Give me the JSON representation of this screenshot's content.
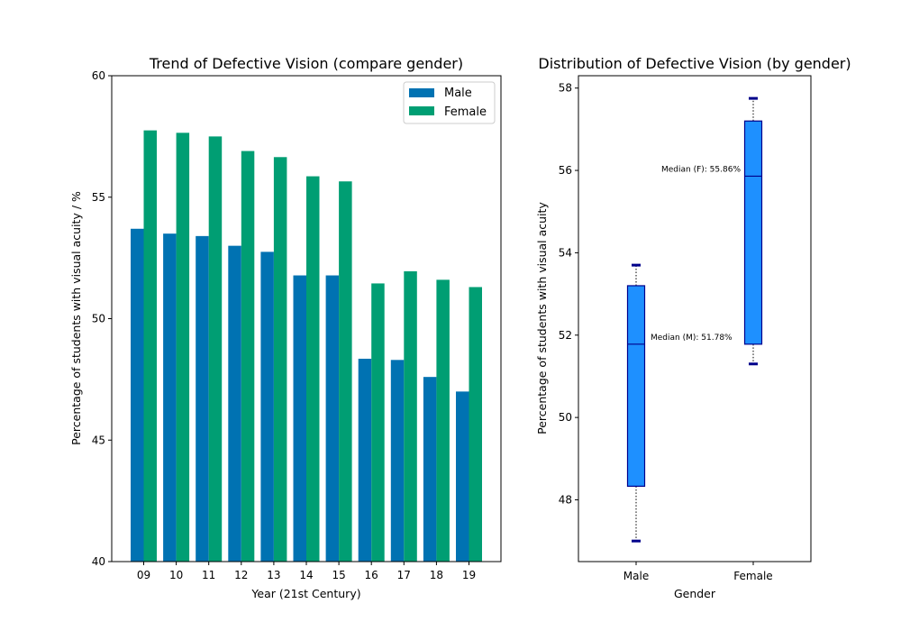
{
  "colors": {
    "male": "#0072b2",
    "female": "#009e73",
    "box_fill": "#1e90ff",
    "box_edge": "#00008b",
    "median": "#00008b",
    "cap": "#00008b"
  },
  "chart_data": [
    {
      "type": "bar",
      "title": "Trend of Defective Vision (compare gender)",
      "xlabel": "Year (21st Century)",
      "ylabel": "Percentage of students with visual acuity / %",
      "categories": [
        "09",
        "10",
        "11",
        "12",
        "13",
        "14",
        "15",
        "16",
        "17",
        "18",
        "19"
      ],
      "series": [
        {
          "name": "Male",
          "color_key": "male",
          "values": [
            53.7,
            53.5,
            53.4,
            53.0,
            52.75,
            51.78,
            51.78,
            48.35,
            48.3,
            47.6,
            47.0
          ]
        },
        {
          "name": "Female",
          "color_key": "female",
          "values": [
            57.75,
            57.65,
            57.5,
            56.9,
            56.65,
            55.86,
            55.65,
            51.45,
            51.95,
            51.6,
            51.3
          ]
        }
      ],
      "ylim": [
        40,
        60
      ],
      "yticks": [
        40,
        45,
        50,
        55,
        60
      ],
      "legend": "top-right",
      "grid": false
    },
    {
      "type": "box",
      "title": "Distribution of Defective Vision (by gender)",
      "xlabel": "Gender",
      "ylabel": "Percentage of students with visual acuity",
      "categories": [
        "Male",
        "Female"
      ],
      "boxes": [
        {
          "category": "Male",
          "min": 47.0,
          "q1": 48.33,
          "median": 51.78,
          "q3": 53.2,
          "max": 53.7
        },
        {
          "category": "Female",
          "min": 51.3,
          "q1": 51.78,
          "median": 55.86,
          "q3": 57.2,
          "max": 57.75
        }
      ],
      "annotations": [
        "Median (M): 51.78%",
        "Median (F): 55.86%"
      ],
      "ylim": [
        46.5,
        58.3
      ],
      "yticks": [
        48,
        50,
        52,
        54,
        56,
        58
      ],
      "grid": false
    }
  ]
}
